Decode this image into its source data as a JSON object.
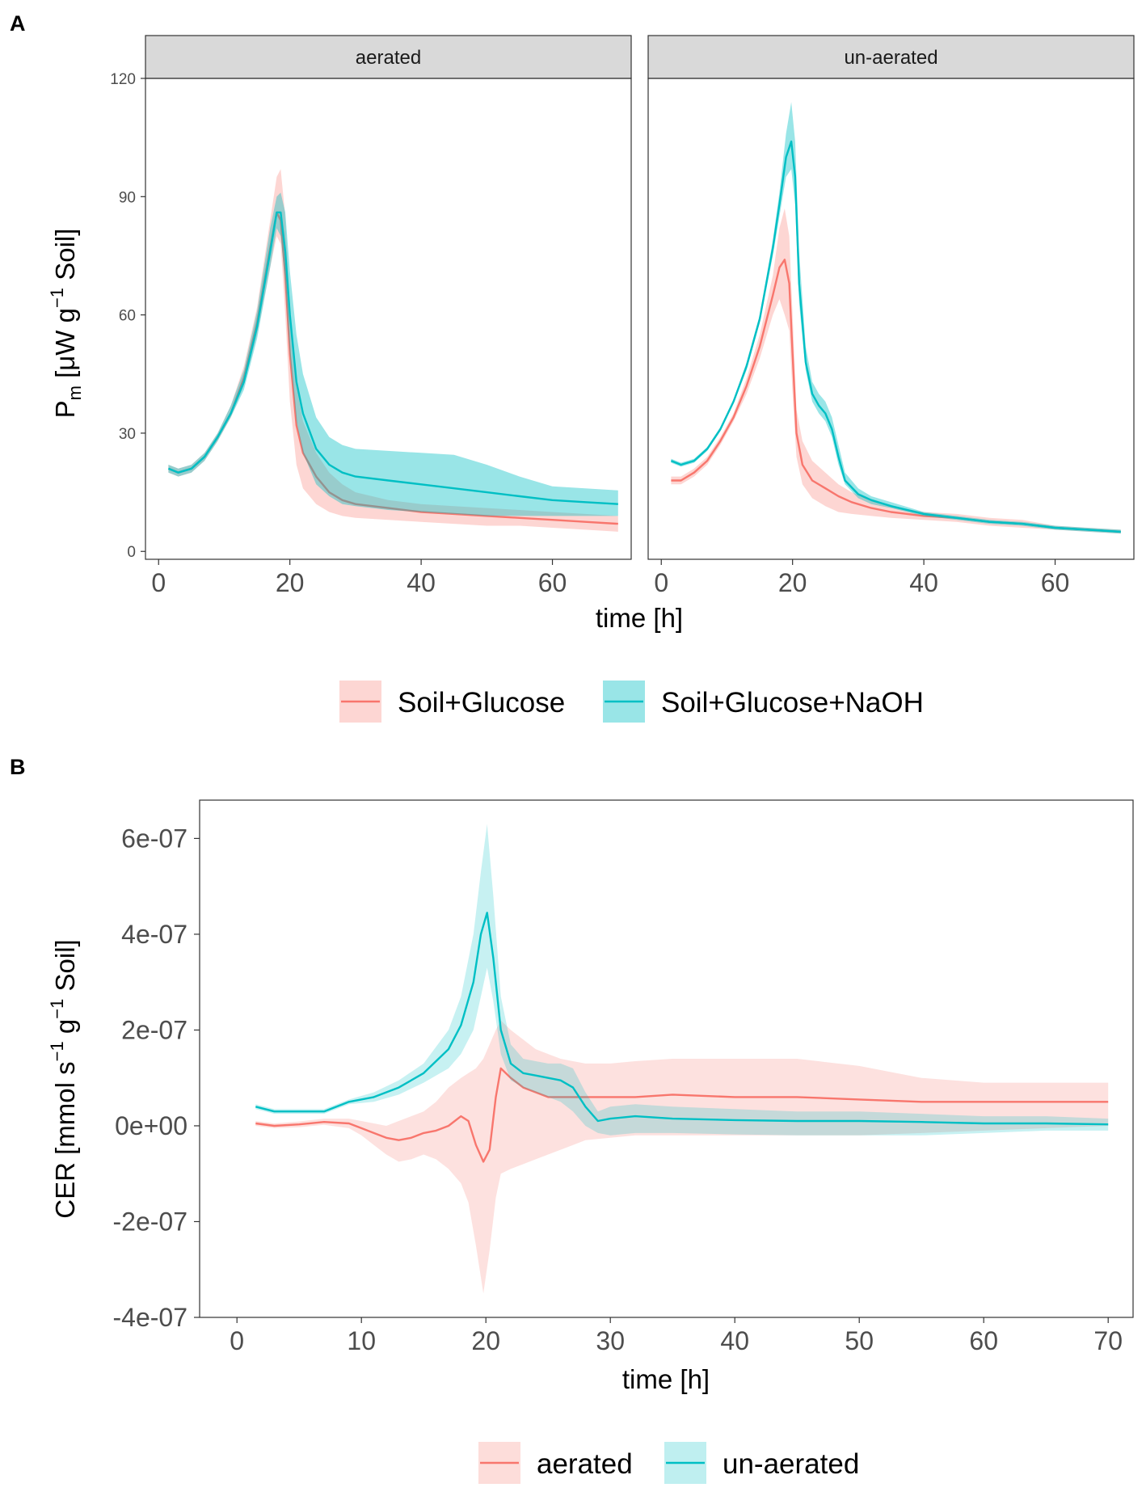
{
  "colors": {
    "red": "#F8766D",
    "teal": "#00BFC4"
  },
  "chart_data": [
    {
      "panel_label": "A",
      "type": "line",
      "facets": [
        "aerated",
        "un-aerated"
      ],
      "xlabel": "time [h]",
      "ylabel": {
        "main": "P",
        "sub": "m",
        "unit_pre": " [μW g",
        "sup": "−1",
        "unit_post": " Soil]"
      },
      "xlim": [
        -2,
        72
      ],
      "ylim": [
        -2,
        120
      ],
      "x_ticks": [
        0,
        20,
        40,
        60
      ],
      "x_tick_labels": [
        "0",
        "20",
        "40",
        "60"
      ],
      "y_ticks": [
        0,
        30,
        60,
        90,
        120
      ],
      "y_tick_labels": [
        "0",
        "30",
        "60",
        "90",
        "120"
      ],
      "legend": {
        "position": "bottom",
        "entries": [
          "Soil+Glucose",
          "Soil+Glucose+NaOH"
        ]
      },
      "series": [
        {
          "name": "Soil+Glucose",
          "facet": "aerated",
          "x": [
            1.5,
            3,
            5,
            7,
            9,
            11,
            13,
            15,
            17,
            18,
            18.6,
            19.3,
            20,
            21,
            22,
            24,
            26,
            28,
            30,
            35,
            40,
            45,
            50,
            55,
            60,
            65,
            70
          ],
          "y": [
            21,
            20,
            21,
            24,
            29,
            35,
            44,
            58,
            77,
            86,
            84,
            70,
            50,
            32,
            25,
            19,
            15,
            13,
            12,
            11,
            10,
            9.5,
            9,
            8.5,
            8,
            7.5,
            7
          ],
          "lower": [
            20,
            19,
            20,
            23,
            28,
            34,
            42,
            55,
            72,
            80,
            78,
            60,
            38,
            22,
            16,
            12,
            10,
            9,
            8.5,
            8,
            7.5,
            7,
            6.5,
            6.5,
            6,
            5.5,
            5
          ],
          "upper": [
            22,
            21,
            22,
            25,
            30,
            37,
            47,
            62,
            84,
            95,
            97,
            85,
            62,
            42,
            33,
            25,
            20,
            17,
            15,
            13,
            12,
            11.5,
            11,
            10.5,
            10,
            9.5,
            9
          ]
        },
        {
          "name": "Soil+Glucose+NaOH",
          "facet": "aerated",
          "x": [
            1.5,
            3,
            5,
            7,
            9,
            11,
            13,
            15,
            17,
            18,
            18.6,
            19.3,
            20,
            21,
            22,
            24,
            26,
            28,
            30,
            35,
            40,
            45,
            50,
            55,
            60,
            65,
            70
          ],
          "y": [
            21,
            20,
            21,
            24,
            29,
            35,
            43,
            57,
            76,
            86,
            86,
            76,
            60,
            43,
            35,
            26,
            22,
            20,
            19,
            18,
            17,
            16,
            15,
            14,
            13,
            12.5,
            12
          ],
          "lower": [
            20,
            19,
            20,
            23,
            28,
            34,
            41,
            54,
            72,
            82,
            80,
            68,
            50,
            33,
            25,
            17,
            14,
            12,
            11.5,
            10.5,
            10,
            9.5,
            9,
            9,
            9,
            9,
            9
          ],
          "upper": [
            22,
            21,
            22,
            25,
            30,
            37,
            46,
            61,
            82,
            90,
            91,
            86,
            71,
            55,
            45,
            34,
            29,
            27,
            26,
            25.5,
            25,
            24.5,
            22,
            19,
            16.5,
            16,
            15.5
          ]
        },
        {
          "name": "Soil+Glucose",
          "facet": "un-aerated",
          "x": [
            1.5,
            3,
            5,
            7,
            9,
            11,
            13,
            15,
            17,
            18,
            18.8,
            19.5,
            20,
            20.6,
            21.5,
            23,
            25,
            27,
            29,
            32,
            35,
            40,
            45,
            50,
            55,
            60,
            65,
            70
          ],
          "y": [
            18,
            18,
            20,
            23,
            28,
            34,
            42,
            52,
            65,
            72,
            74,
            68,
            50,
            30,
            22,
            18,
            16,
            14,
            12.5,
            11,
            10,
            9,
            8.5,
            7.5,
            7,
            6,
            5.5,
            5
          ],
          "lower": [
            17,
            17,
            19,
            22,
            27,
            33,
            40,
            49,
            60,
            64,
            60,
            56,
            40,
            24,
            17,
            13.5,
            11.5,
            10,
            9.5,
            9,
            8.5,
            8,
            7.5,
            6.5,
            6,
            5.5,
            5,
            4.5
          ],
          "upper": [
            19,
            19,
            21,
            24,
            29,
            35,
            44,
            55,
            70,
            82,
            87,
            80,
            60,
            36,
            28,
            23,
            20,
            17,
            15,
            13,
            11.5,
            10,
            9.5,
            8.5,
            8,
            6.5,
            6,
            5.5
          ]
        },
        {
          "name": "Soil+Glucose+NaOH",
          "facet": "un-aerated",
          "x": [
            1.5,
            3,
            5,
            7,
            9,
            11,
            13,
            15,
            17,
            18,
            19,
            19.8,
            20.4,
            21,
            22,
            23,
            24,
            25,
            26,
            27,
            28,
            30,
            32,
            35,
            40,
            45,
            50,
            55,
            60,
            65,
            70
          ],
          "y": [
            23,
            22,
            23,
            26,
            31,
            38,
            47,
            59,
            77,
            88,
            100,
            104,
            95,
            68,
            48,
            40,
            37,
            35,
            31,
            24,
            18,
            14.5,
            13,
            11.5,
            9.5,
            8.5,
            7.5,
            7,
            6,
            5.5,
            5
          ],
          "lower": [
            22.5,
            21.5,
            22.5,
            25.5,
            30.5,
            37.5,
            46,
            58,
            75,
            85,
            95,
            97,
            88,
            63,
            46,
            38,
            35,
            33,
            29,
            22,
            17,
            13.5,
            12,
            11,
            9,
            8,
            7,
            6.5,
            5.5,
            5,
            4.5
          ],
          "upper": [
            23.5,
            22.5,
            23.5,
            26.5,
            31.5,
            38.5,
            48,
            60,
            79,
            91,
            106,
            114,
            104,
            76,
            52,
            43,
            40,
            38,
            34,
            27,
            20,
            16,
            14,
            12.5,
            10,
            9,
            8,
            7.5,
            6.5,
            6,
            5.5
          ]
        }
      ]
    },
    {
      "panel_label": "B",
      "type": "line",
      "xlabel": "time [h]",
      "ylabel": {
        "pre": "CER [mmol s",
        "sup1": "−1",
        "mid": " g",
        "sup2": "−1",
        "post": " Soil]"
      },
      "xlim": [
        -3,
        72
      ],
      "ylim": [
        -4e-07,
        6.8e-07
      ],
      "x_ticks": [
        0,
        10,
        20,
        30,
        40,
        50,
        60,
        70
      ],
      "x_tick_labels": [
        "0",
        "10",
        "20",
        "30",
        "40",
        "50",
        "60",
        "70"
      ],
      "y_ticks": [
        -4e-07,
        -2e-07,
        0,
        2e-07,
        4e-07,
        6e-07
      ],
      "y_tick_labels": [
        "-4e-07",
        "-2e-07",
        "0e+00",
        "2e-07",
        "4e-07",
        "6e-07"
      ],
      "legend": {
        "position": "bottom",
        "entries": [
          "aerated",
          "un-aerated"
        ]
      },
      "series": [
        {
          "name": "aerated",
          "x": [
            1.5,
            3,
            5,
            7,
            9,
            10,
            11,
            12,
            13,
            14,
            15,
            16,
            17,
            18,
            18.6,
            19.2,
            19.8,
            20.3,
            20.8,
            21.2,
            22,
            23,
            24,
            25,
            26,
            27,
            28,
            30,
            32,
            35,
            40,
            45,
            50,
            55,
            60,
            65,
            70
          ],
          "y": [
            5e-09,
            0,
            3e-09,
            8e-09,
            5e-09,
            -5e-09,
            -1.5e-08,
            -2.5e-08,
            -3e-08,
            -2.5e-08,
            -1.5e-08,
            -1e-08,
            0,
            2e-08,
            1e-08,
            -4e-08,
            -7.5e-08,
            -5e-08,
            6e-08,
            1.2e-07,
            1e-07,
            8e-08,
            7e-08,
            6e-08,
            6e-08,
            6e-08,
            6e-08,
            6e-08,
            6e-08,
            6.5e-08,
            6e-08,
            6e-08,
            5.5e-08,
            5e-08,
            5e-08,
            5e-08,
            5e-08
          ],
          "lower": [
            0,
            -5e-09,
            -3e-09,
            2e-09,
            -5e-09,
            -2e-08,
            -4e-08,
            -6e-08,
            -7.5e-08,
            -7e-08,
            -6e-08,
            -7e-08,
            -9e-08,
            -1.2e-07,
            -1.6e-07,
            -2.5e-07,
            -3.5e-07,
            -2.6e-07,
            -1.5e-07,
            -1e-07,
            -9e-08,
            -8e-08,
            -7e-08,
            -6e-08,
            -5e-08,
            -4e-08,
            -3e-08,
            -2.5e-08,
            -2e-08,
            -2e-08,
            -2e-08,
            -2e-08,
            -2e-08,
            -1.5e-08,
            -1e-08,
            -5e-09,
            0
          ],
          "upper": [
            1e-08,
            5e-09,
            9e-09,
            1.5e-08,
            1.5e-08,
            1e-08,
            5e-09,
            0,
            1e-08,
            2e-08,
            3e-08,
            5e-08,
            8e-08,
            1e-07,
            1.1e-07,
            1.2e-07,
            1.4e-07,
            1.7e-07,
            2e-07,
            2.2e-07,
            2e-07,
            1.8e-07,
            1.6e-07,
            1.5e-07,
            1.4e-07,
            1.35e-07,
            1.3e-07,
            1.3e-07,
            1.35e-07,
            1.4e-07,
            1.4e-07,
            1.4e-07,
            1.25e-07,
            1e-07,
            9e-08,
            9e-08,
            9e-08
          ]
        },
        {
          "name": "un-aerated",
          "x": [
            1.5,
            3,
            5,
            7,
            9,
            11,
            13,
            15,
            17,
            18,
            19,
            19.6,
            20.1,
            20.6,
            21.2,
            22,
            23,
            24,
            25,
            26,
            27,
            28,
            29,
            30,
            32,
            35,
            40,
            45,
            50,
            55,
            60,
            65,
            70
          ],
          "y": [
            4e-08,
            3e-08,
            3e-08,
            3e-08,
            5e-08,
            6e-08,
            8e-08,
            1.1e-07,
            1.6e-07,
            2.1e-07,
            3e-07,
            4e-07,
            4.45e-07,
            3.5e-07,
            2e-07,
            1.3e-07,
            1.1e-07,
            1.05e-07,
            1e-07,
            9.5e-08,
            8e-08,
            4e-08,
            1e-08,
            1.5e-08,
            2e-08,
            1.5e-08,
            1.2e-08,
            1e-08,
            1e-08,
            8e-09,
            5e-09,
            5e-09,
            3e-09
          ],
          "lower": [
            3.5e-08,
            2.5e-08,
            2.5e-08,
            2.5e-08,
            4.5e-08,
            5e-08,
            6.5e-08,
            9e-08,
            1.2e-07,
            1.5e-07,
            2e-07,
            2.7e-07,
            3.3e-07,
            2.6e-07,
            1.5e-07,
            9.5e-08,
            8e-08,
            7e-08,
            6e-08,
            5e-08,
            3e-08,
            0,
            -1.5e-08,
            -2e-08,
            -1.5e-08,
            -1.5e-08,
            -1.8e-08,
            -2e-08,
            -2e-08,
            -2e-08,
            -1.5e-08,
            -1e-08,
            -1e-08
          ],
          "upper": [
            4.5e-08,
            3.5e-08,
            3.5e-08,
            3.5e-08,
            5.5e-08,
            7e-08,
            9.5e-08,
            1.3e-07,
            2e-07,
            2.7e-07,
            4e-07,
            5.3e-07,
            6.3e-07,
            4.8e-07,
            2.7e-07,
            1.7e-07,
            1.4e-07,
            1.35e-07,
            1.3e-07,
            1.3e-07,
            1.2e-07,
            7e-08,
            3e-08,
            4e-08,
            4.5e-08,
            4e-08,
            3.5e-08,
            3e-08,
            3e-08,
            2.5e-08,
            2e-08,
            2e-08,
            1.5e-08
          ]
        }
      ]
    }
  ]
}
